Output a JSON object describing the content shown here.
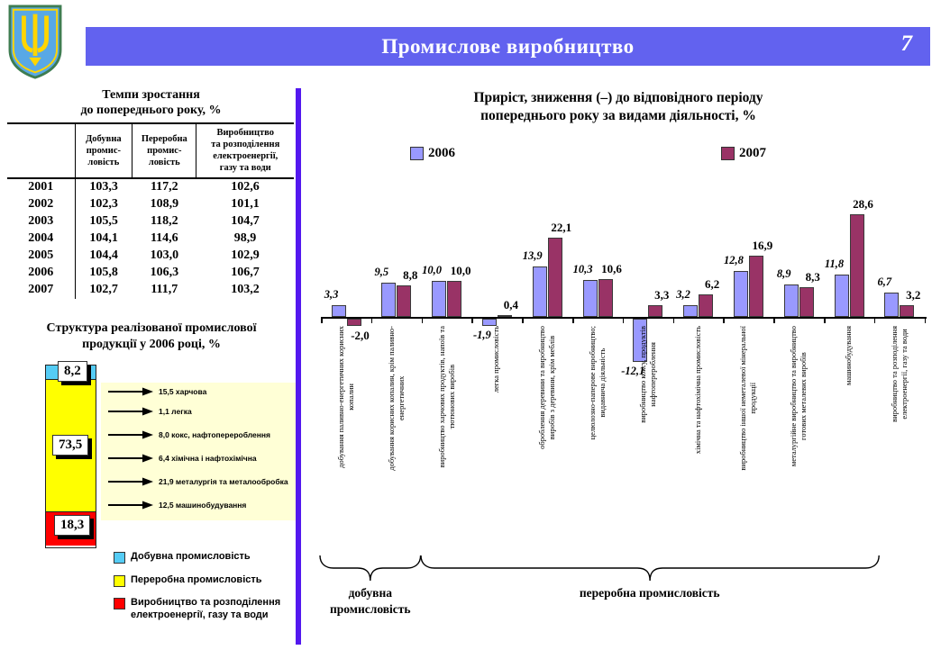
{
  "header": {
    "title": "Промислове виробництво",
    "page_number": "7"
  },
  "accent_colors": {
    "header_bar": "#6262ef",
    "divider": "#5318ef"
  },
  "chart_data": [
    {
      "id": "activity-growth",
      "type": "bar",
      "title": "Приріст, зниження (–) до відповідного періоду\nпопереднього року за видами діяльності, %",
      "legend_position": "top",
      "grid": false,
      "ylim": [
        -15,
        30
      ],
      "categories": [
        "добування паливно-енергетичних корисних\nкопалин",
        "добування корисних копалин, крім паливно-\nенергетичних",
        "виробництво харчових продуктів, напоїв та\nтютюнових виробів",
        "легка промисловість",
        "оброблення деревини та виробництво\nвиробів з деревини, крім меблів",
        "целюлозно-паперове виробництво;\nвидавнича діяльність",
        "виробництво коксу, продуктів\nнафтоперероблення",
        "хімічна та нафтохімічна промисловість",
        "виробництво іншої неметалевої мінеральної\nпродукції",
        "металургійне виробництво та виробництво\nготових металевих виробів",
        "машинобудування",
        "виробництво та розподілення\nелектроенергії, газу та води"
      ],
      "series": [
        {
          "name": "2006",
          "color": "#9999ff",
          "values": [
            3.3,
            9.5,
            10.0,
            -1.9,
            13.9,
            10.3,
            -12.1,
            3.2,
            12.8,
            8.9,
            11.8,
            6.7
          ]
        },
        {
          "name": "2007",
          "color": "#993366",
          "values": [
            -2.0,
            8.8,
            10.0,
            0.4,
            22.1,
            10.6,
            3.3,
            6.2,
            16.9,
            8.3,
            28.6,
            3.2
          ]
        }
      ],
      "group_braces": [
        {
          "label": "добувна\nпромисловість",
          "from": 0,
          "to": 1
        },
        {
          "label": "переробна промисловість",
          "from": 2,
          "to": 10
        }
      ]
    },
    {
      "id": "structure-2006",
      "type": "bar",
      "subtype": "stacked-column",
      "title": "Структура реалізованої промислової\nпродукції у 2006 році, %",
      "categories": [
        "2006"
      ],
      "series": [
        {
          "name": "Добувна промисловість",
          "color": "#55ccf5",
          "values": [
            8.2
          ]
        },
        {
          "name": "Переробна промисловість",
          "color": "#ffff00",
          "values": [
            73.5
          ]
        },
        {
          "name": "Виробництво та розподілення електроенергії, газу та води",
          "color": "#ff0000",
          "values": [
            18.3
          ]
        }
      ],
      "callouts": [
        {
          "value": 15.5,
          "label": "харчова"
        },
        {
          "value": 1.1,
          "label": "легка"
        },
        {
          "value": 8.0,
          "label": "кокс, нафтоперероблення"
        },
        {
          "value": 6.4,
          "label": "хімічна і нафтохімічна"
        },
        {
          "value": 21.9,
          "label": "металургія та металообробка"
        },
        {
          "value": 12.5,
          "label": "машинобудування"
        }
      ]
    },
    {
      "id": "growth-rates-table",
      "type": "table",
      "title": "Темпи зростання\nдо попереднього року, %",
      "columns": [
        "",
        "Добувна\nпромис-\nловість",
        "Переробна\nпромис-\nловість",
        "Виробництво\nта розподілення\nелектроенергії,\nгазу та води"
      ],
      "rows": [
        [
          "2001",
          "103,3",
          "117,2",
          "102,6"
        ],
        [
          "2002",
          "102,3",
          "108,9",
          "101,1"
        ],
        [
          "2003",
          "105,5",
          "118,2",
          "104,7"
        ],
        [
          "2004",
          "104,1",
          "114,6",
          "98,9"
        ],
        [
          "2005",
          "104,4",
          "103,0",
          "102,9"
        ],
        [
          "2006",
          "105,8",
          "106,3",
          "106,7"
        ],
        [
          "2007",
          "102,7",
          "111,7",
          "103,2"
        ]
      ]
    }
  ]
}
